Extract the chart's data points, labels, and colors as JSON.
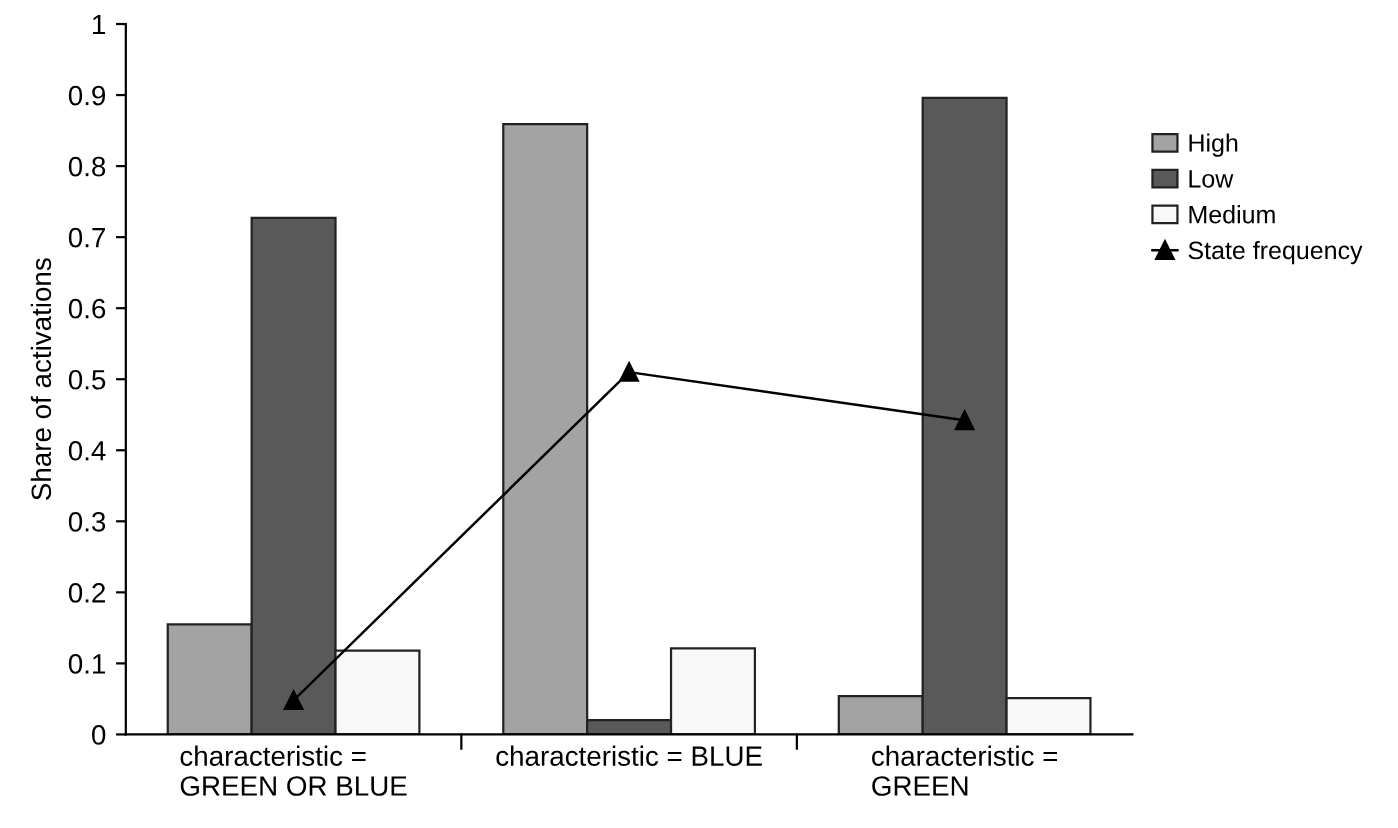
{
  "chart_data": {
    "type": "bar",
    "ylabel": "Share of activations",
    "categories": [
      "characteristic =\nGREEN OR BLUE",
      "characteristic = BLUE",
      "characteristic =\nGREEN"
    ],
    "series": [
      {
        "name": "High",
        "color": "#a3a3a3",
        "values": [
          0.155,
          0.859,
          0.054
        ]
      },
      {
        "name": "Low",
        "color": "#595959",
        "values": [
          0.727,
          0.02,
          0.896
        ]
      },
      {
        "name": "Medium",
        "color": "#f8f8f8",
        "values": [
          0.118,
          0.121,
          0.051
        ]
      },
      {
        "name": "State frequency",
        "type": "line",
        "color": "#000000",
        "marker": "triangle",
        "values": [
          0.048,
          0.51,
          0.442
        ]
      }
    ],
    "ylim": [
      0,
      1
    ],
    "yticks": [
      0,
      0.1,
      0.2,
      0.3,
      0.4,
      0.5,
      0.6,
      0.7,
      0.8,
      0.9,
      1
    ],
    "grid": false,
    "legend": "right"
  }
}
